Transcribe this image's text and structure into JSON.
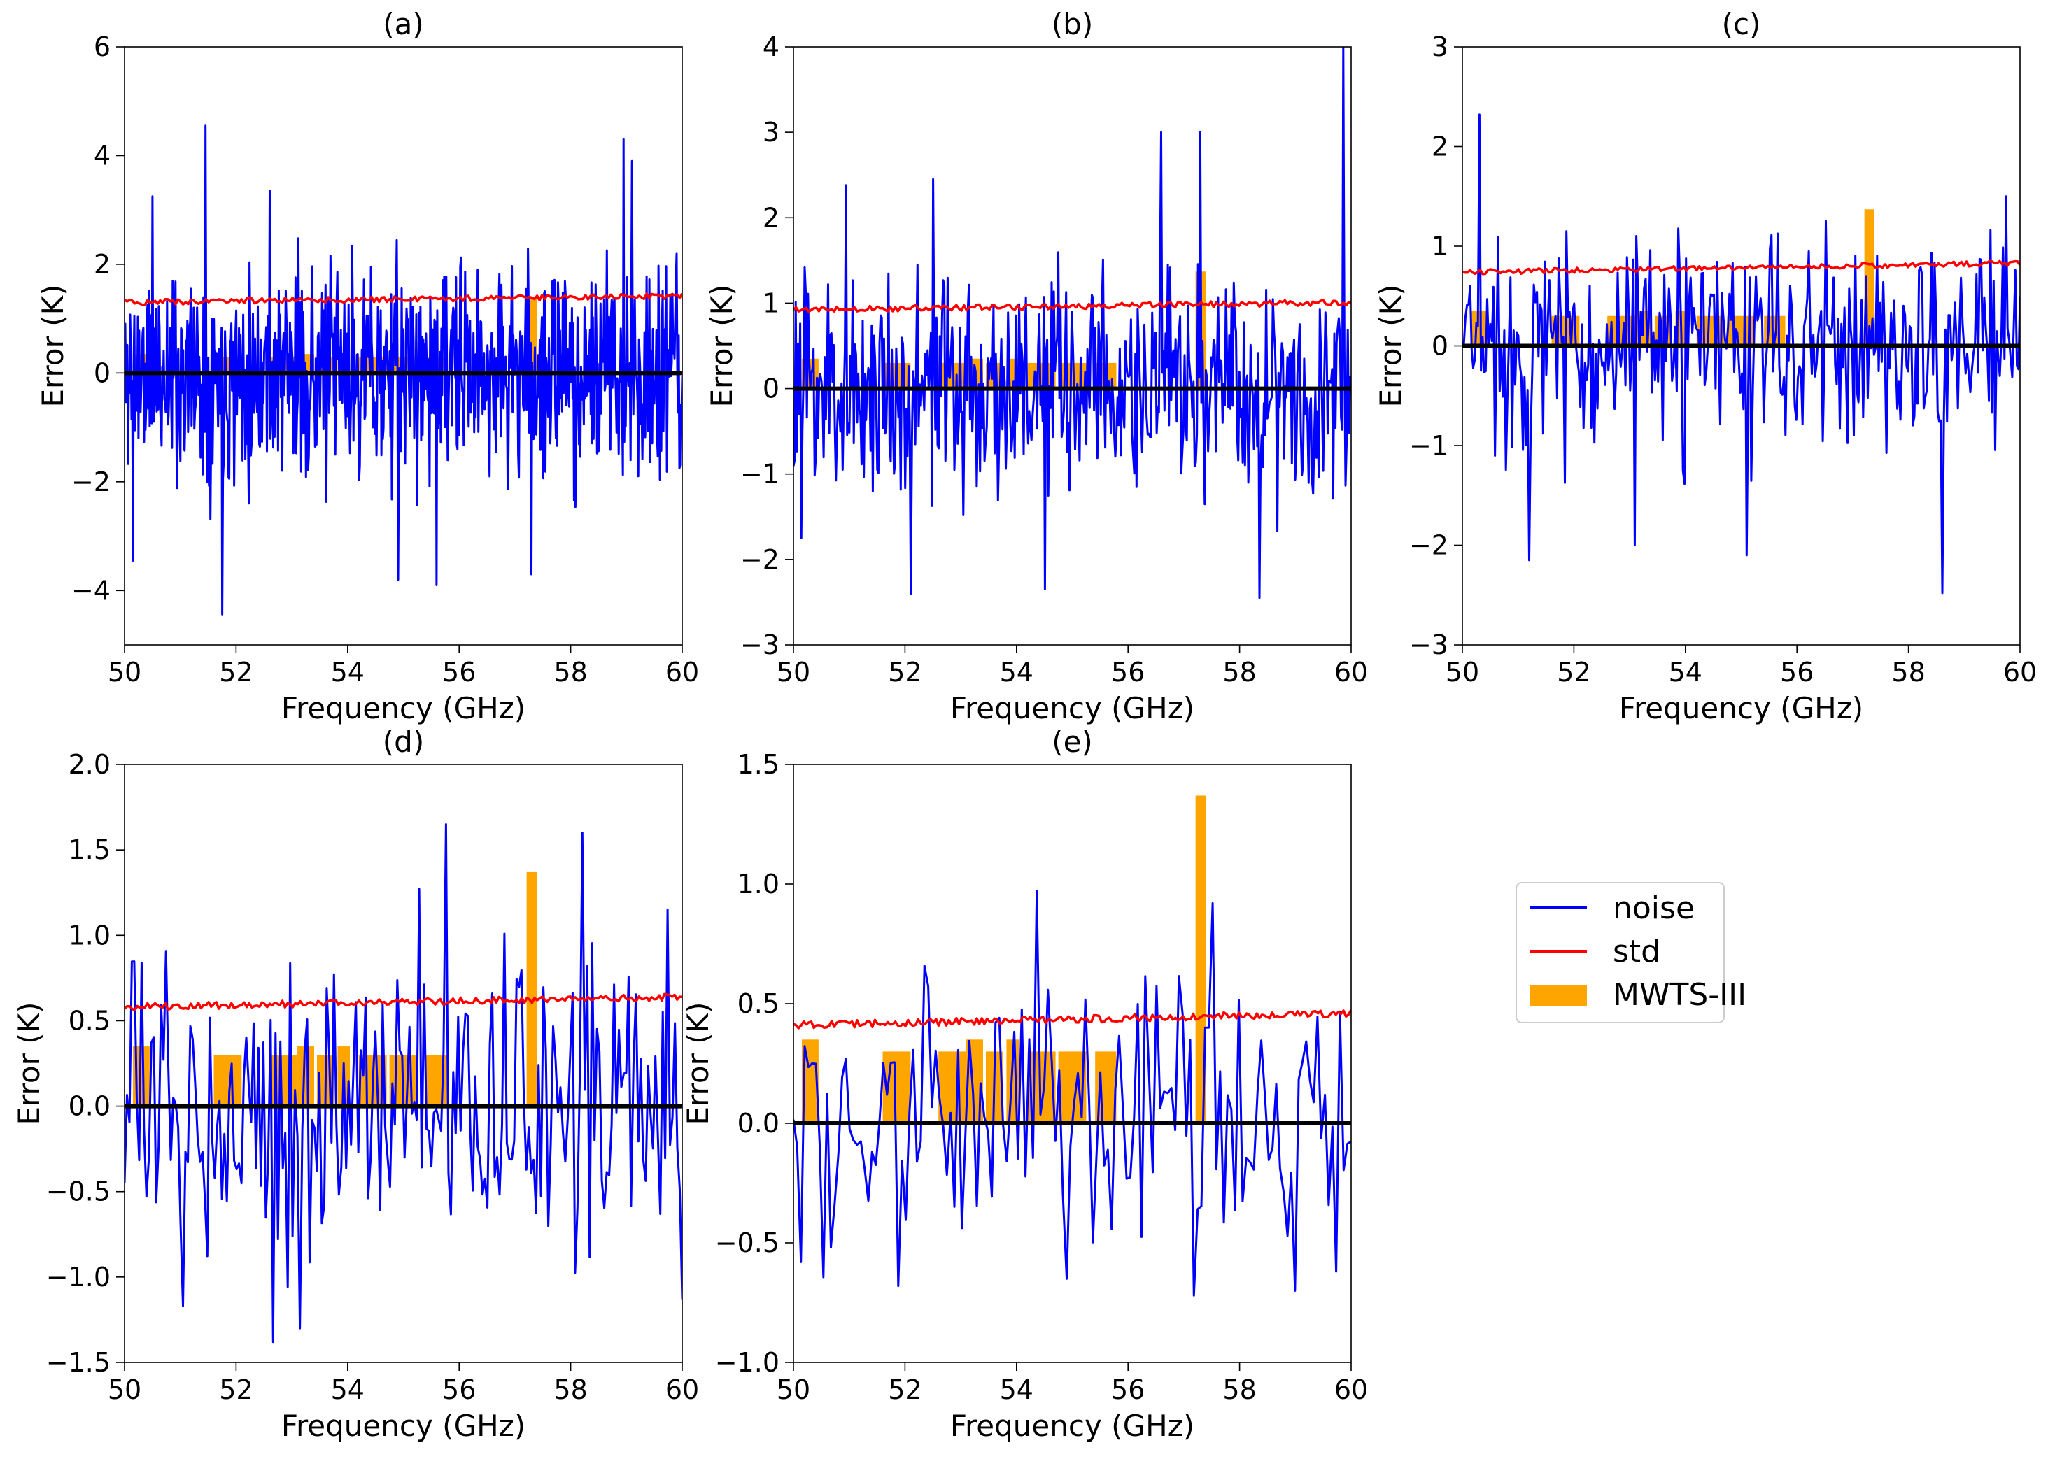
{
  "figure": {
    "background": "#ffffff",
    "colors": {
      "noise": "#0000ff",
      "std": "#ff0000",
      "mwts": "#ffa500",
      "zero_line": "#000000"
    }
  },
  "legend": {
    "placement": "right of panel (e), lower row",
    "entries": [
      {
        "key": "noise",
        "label": "noise",
        "kind": "line"
      },
      {
        "key": "std",
        "label": "std",
        "kind": "line"
      },
      {
        "key": "mwts",
        "label": "MWTS-III",
        "kind": "patch"
      }
    ]
  },
  "chart_data": [
    {
      "id": "a",
      "title": "(a)",
      "type": "line",
      "xlabel": "Frequency (GHz)",
      "ylabel": "Error (K)",
      "xlim": [
        50,
        60
      ],
      "ylim": [
        -5,
        6
      ],
      "xticks": [
        50,
        52,
        54,
        56,
        58,
        60
      ],
      "yticks": [
        -4,
        -2,
        0,
        2,
        4,
        6
      ],
      "ytick_labels": [
        "−4",
        "−2",
        "0",
        "2",
        "4",
        "6"
      ],
      "noise": {
        "points": 800,
        "amplitude": 1.4,
        "seed": 11,
        "spikes": [
          [
            51.45,
            4.55
          ],
          [
            51.75,
            -4.45
          ],
          [
            58.95,
            4.3
          ],
          [
            59.1,
            3.9
          ],
          [
            57.3,
            -3.7
          ],
          [
            54.9,
            -3.8
          ],
          [
            55.6,
            -3.9
          ],
          [
            50.15,
            -3.45
          ],
          [
            50.5,
            3.25
          ],
          [
            52.6,
            3.35
          ]
        ]
      },
      "std": {
        "start": 1.3,
        "end": 1.42,
        "jitter": 0.05
      },
      "mwts": [
        {
          "center": 50.3,
          "width": 0.3,
          "height": 0.35
        },
        {
          "center": 51.85,
          "width": 0.5,
          "height": 0.3
        },
        {
          "center": 52.85,
          "width": 0.5,
          "height": 0.3
        },
        {
          "center": 53.25,
          "width": 0.3,
          "height": 0.35
        },
        {
          "center": 53.6,
          "width": 0.3,
          "height": 0.3
        },
        {
          "center": 53.93,
          "width": 0.22,
          "height": 0.35
        },
        {
          "center": 54.45,
          "width": 0.5,
          "height": 0.3
        },
        {
          "center": 55.0,
          "width": 0.5,
          "height": 0.3
        },
        {
          "center": 55.6,
          "width": 0.38,
          "height": 0.3
        },
        {
          "center": 57.3,
          "width": 0.18,
          "height": 1.37
        }
      ]
    },
    {
      "id": "b",
      "title": "(b)",
      "type": "line",
      "xlabel": "Frequency (GHz)",
      "ylabel": "Error (K)",
      "xlim": [
        50,
        60
      ],
      "ylim": [
        -3,
        4
      ],
      "xticks": [
        50,
        52,
        54,
        56,
        58,
        60
      ],
      "yticks": [
        -3,
        -2,
        -1,
        0,
        1,
        2,
        3,
        4
      ],
      "ytick_labels": [
        "−3",
        "−2",
        "−1",
        "0",
        "1",
        "2",
        "3",
        "4"
      ],
      "noise": {
        "points": 500,
        "amplitude": 0.95,
        "seed": 23,
        "spikes": [
          [
            59.85,
            4.0
          ],
          [
            56.6,
            3.0
          ],
          [
            57.3,
            3.0
          ],
          [
            52.5,
            2.45
          ],
          [
            50.95,
            2.38
          ],
          [
            52.1,
            -2.4
          ],
          [
            54.5,
            -2.35
          ],
          [
            58.35,
            -2.45
          ],
          [
            50.15,
            -1.75
          ]
        ]
      },
      "std": {
        "start": 0.92,
        "end": 1.01,
        "jitter": 0.035
      },
      "mwts": [
        {
          "center": 50.3,
          "width": 0.3,
          "height": 0.35
        },
        {
          "center": 51.85,
          "width": 0.5,
          "height": 0.3
        },
        {
          "center": 52.85,
          "width": 0.5,
          "height": 0.3
        },
        {
          "center": 53.25,
          "width": 0.3,
          "height": 0.35
        },
        {
          "center": 53.6,
          "width": 0.3,
          "height": 0.3
        },
        {
          "center": 53.93,
          "width": 0.22,
          "height": 0.35
        },
        {
          "center": 54.45,
          "width": 0.5,
          "height": 0.3
        },
        {
          "center": 55.0,
          "width": 0.5,
          "height": 0.3
        },
        {
          "center": 55.6,
          "width": 0.38,
          "height": 0.3
        },
        {
          "center": 57.3,
          "width": 0.18,
          "height": 1.37
        }
      ]
    },
    {
      "id": "c",
      "title": "(c)",
      "type": "line",
      "xlabel": "Frequency (GHz)",
      "ylabel": "Error (K)",
      "xlim": [
        50,
        60
      ],
      "ylim": [
        -3,
        3
      ],
      "xticks": [
        50,
        52,
        54,
        56,
        58,
        60
      ],
      "yticks": [
        -3,
        -2,
        -1,
        0,
        1,
        2,
        3
      ],
      "ytick_labels": [
        "−3",
        "−2",
        "−1",
        "0",
        "1",
        "2",
        "3"
      ],
      "noise": {
        "points": 360,
        "amplitude": 0.78,
        "seed": 37,
        "spikes": [
          [
            50.3,
            2.32
          ],
          [
            58.6,
            -2.48
          ],
          [
            51.2,
            -2.15
          ],
          [
            53.1,
            -2.0
          ],
          [
            55.1,
            -2.1
          ],
          [
            59.75,
            1.5
          ]
        ]
      },
      "std": {
        "start": 0.74,
        "end": 0.83,
        "jitter": 0.025
      },
      "mwts": [
        {
          "center": 50.3,
          "width": 0.3,
          "height": 0.35
        },
        {
          "center": 51.85,
          "width": 0.5,
          "height": 0.3
        },
        {
          "center": 52.85,
          "width": 0.5,
          "height": 0.3
        },
        {
          "center": 53.25,
          "width": 0.3,
          "height": 0.35
        },
        {
          "center": 53.6,
          "width": 0.3,
          "height": 0.3
        },
        {
          "center": 53.93,
          "width": 0.22,
          "height": 0.35
        },
        {
          "center": 54.45,
          "width": 0.5,
          "height": 0.3
        },
        {
          "center": 55.0,
          "width": 0.5,
          "height": 0.3
        },
        {
          "center": 55.6,
          "width": 0.38,
          "height": 0.3
        },
        {
          "center": 57.3,
          "width": 0.18,
          "height": 1.37
        }
      ]
    },
    {
      "id": "d",
      "title": "(d)",
      "type": "line",
      "xlabel": "Frequency (GHz)",
      "ylabel": "Error (K)",
      "xlim": [
        50,
        60
      ],
      "ylim": [
        -1.5,
        2.0
      ],
      "xticks": [
        50,
        52,
        54,
        56,
        58,
        60
      ],
      "yticks": [
        -1.5,
        -1.0,
        -0.5,
        0.0,
        0.5,
        1.0,
        1.5,
        2.0
      ],
      "ytick_labels": [
        "−1.5",
        "−1.0",
        "−0.5",
        "0.0",
        "0.5",
        "1.0",
        "1.5",
        "2.0"
      ],
      "noise": {
        "points": 230,
        "amplitude": 0.6,
        "seed": 53,
        "spikes": [
          [
            55.75,
            1.65
          ],
          [
            58.2,
            1.6
          ],
          [
            52.65,
            -1.38
          ],
          [
            53.15,
            -1.3
          ],
          [
            51.05,
            -1.17
          ],
          [
            60.0,
            -1.13
          ],
          [
            55.3,
            1.27
          ],
          [
            59.75,
            1.15
          ]
        ]
      },
      "std": {
        "start": 0.58,
        "end": 0.64,
        "jitter": 0.02
      },
      "mwts": [
        {
          "center": 50.3,
          "width": 0.3,
          "height": 0.35
        },
        {
          "center": 51.85,
          "width": 0.5,
          "height": 0.3
        },
        {
          "center": 52.85,
          "width": 0.5,
          "height": 0.3
        },
        {
          "center": 53.25,
          "width": 0.3,
          "height": 0.35
        },
        {
          "center": 53.6,
          "width": 0.3,
          "height": 0.3
        },
        {
          "center": 53.93,
          "width": 0.22,
          "height": 0.35
        },
        {
          "center": 54.45,
          "width": 0.5,
          "height": 0.3
        },
        {
          "center": 55.0,
          "width": 0.5,
          "height": 0.3
        },
        {
          "center": 55.6,
          "width": 0.38,
          "height": 0.3
        },
        {
          "center": 57.3,
          "width": 0.18,
          "height": 1.37
        }
      ]
    },
    {
      "id": "e",
      "title": "(e)",
      "type": "line",
      "xlabel": "Frequency (GHz)",
      "ylabel": "Error (K)",
      "xlim": [
        50,
        60
      ],
      "ylim": [
        -1.0,
        1.5
      ],
      "xticks": [
        50,
        52,
        54,
        56,
        58,
        60
      ],
      "yticks": [
        -1.0,
        -0.5,
        0.0,
        0.5,
        1.0,
        1.5
      ],
      "ytick_labels": [
        "−1.0",
        "−0.5",
        "0.0",
        "0.5",
        "1.0",
        "1.5"
      ],
      "noise": {
        "points": 150,
        "amplitude": 0.42,
        "seed": 71,
        "spikes": [
          [
            54.35,
            0.97
          ],
          [
            57.5,
            0.92
          ],
          [
            59.0,
            -0.7
          ],
          [
            57.2,
            -0.72
          ],
          [
            51.9,
            -0.68
          ],
          [
            59.75,
            -0.62
          ],
          [
            50.15,
            -0.58
          ],
          [
            54.9,
            -0.65
          ]
        ]
      },
      "std": {
        "start": 0.41,
        "end": 0.46,
        "jitter": 0.015
      },
      "mwts": [
        {
          "center": 50.3,
          "width": 0.3,
          "height": 0.35
        },
        {
          "center": 51.85,
          "width": 0.5,
          "height": 0.3
        },
        {
          "center": 52.85,
          "width": 0.5,
          "height": 0.3
        },
        {
          "center": 53.25,
          "width": 0.3,
          "height": 0.35
        },
        {
          "center": 53.6,
          "width": 0.3,
          "height": 0.3
        },
        {
          "center": 53.93,
          "width": 0.22,
          "height": 0.35
        },
        {
          "center": 54.45,
          "width": 0.5,
          "height": 0.3
        },
        {
          "center": 55.0,
          "width": 0.5,
          "height": 0.3
        },
        {
          "center": 55.6,
          "width": 0.38,
          "height": 0.3
        },
        {
          "center": 57.3,
          "width": 0.18,
          "height": 1.37
        }
      ]
    }
  ]
}
